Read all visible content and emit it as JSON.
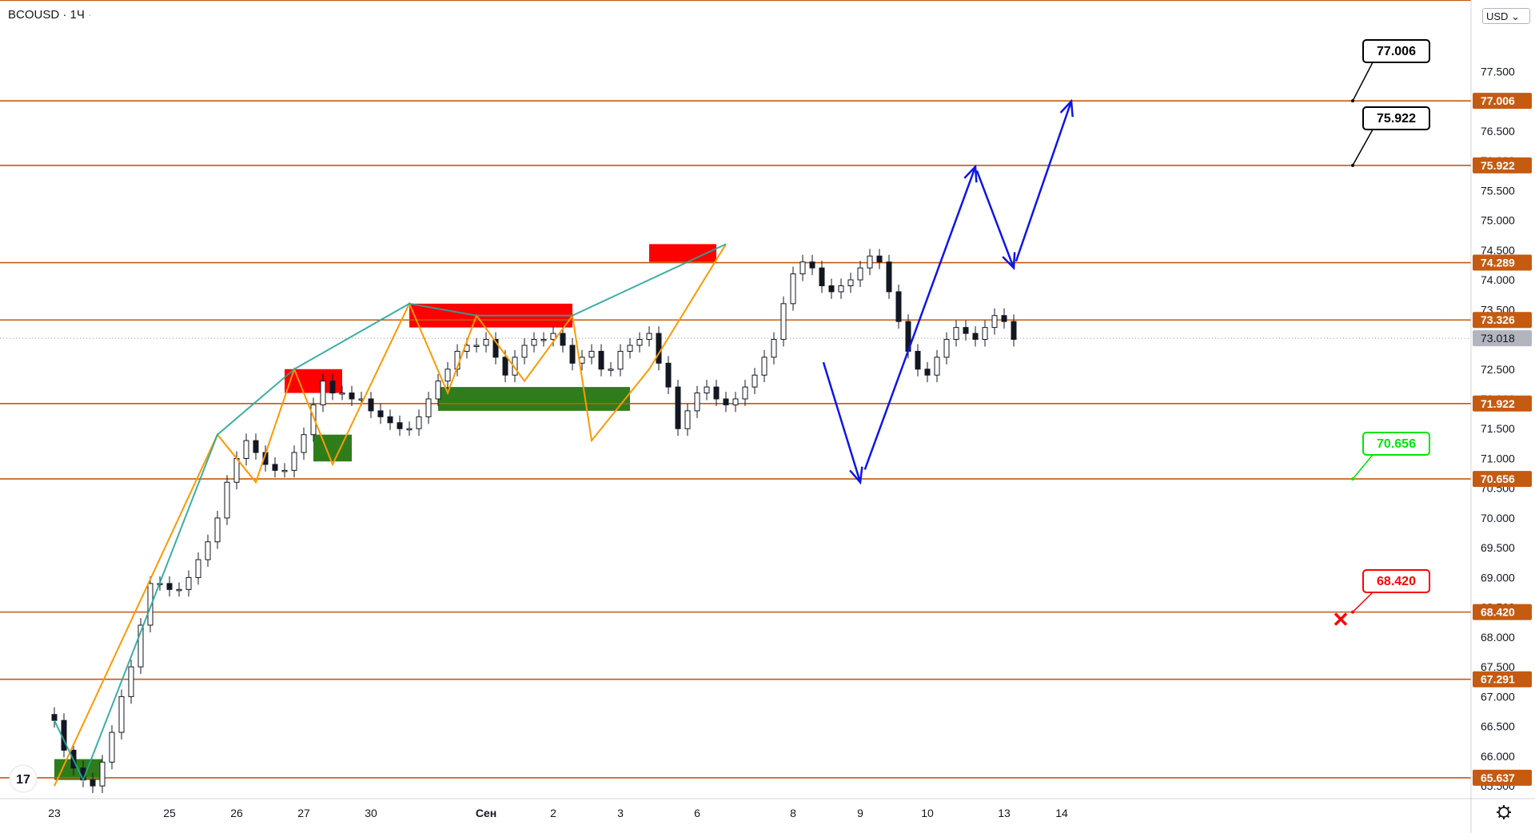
{
  "header": {
    "symbol": "BCOUSD",
    "separator": "·",
    "interval": "1Ч",
    "dot": "·"
  },
  "currency": {
    "label": "USD",
    "caret": "⌄"
  },
  "chart_data": {
    "type": "candlestick",
    "y_ticks": [
      77.5,
      77.0,
      76.5,
      76.0,
      75.5,
      75.0,
      74.5,
      74.0,
      73.5,
      72.5,
      72.0,
      71.5,
      71.0,
      70.5,
      70.0,
      69.5,
      69.0,
      68.5,
      68.0,
      67.5,
      67.0,
      66.5,
      66.0,
      65.5
    ],
    "y_tick_labels": [
      "77.500",
      "77.000",
      "76.500",
      "76.000",
      "75.500",
      "75.000",
      "74.500",
      "74.000",
      "73.500",
      "72.500",
      "72.000",
      "71.500",
      "71.000",
      "70.500",
      "70.000",
      "69.500",
      "69.000",
      "68.500",
      "68.000",
      "67.500",
      "67.000",
      "66.500",
      "66.000",
      "65.500"
    ],
    "ylim": [
      65.3,
      78.7
    ],
    "x_labels": [
      {
        "label": "23",
        "index": 0
      },
      {
        "label": "25",
        "index": 12
      },
      {
        "label": "26",
        "index": 19
      },
      {
        "label": "27",
        "index": 26
      },
      {
        "label": "30",
        "index": 33
      },
      {
        "label": "Сен",
        "index": 45
      },
      {
        "label": "2",
        "index": 52
      },
      {
        "label": "3",
        "index": 59
      },
      {
        "label": "6",
        "index": 67
      },
      {
        "label": "8",
        "index": 77
      },
      {
        "label": "9",
        "index": 84
      },
      {
        "label": "10",
        "index": 91
      },
      {
        "label": "13",
        "index": 99
      },
      {
        "label": "14",
        "index": 105
      }
    ],
    "levels": [
      {
        "value": 78.695,
        "label": "78.695",
        "labeled": false
      },
      {
        "value": 77.006,
        "label": "77.006",
        "labeled": true
      },
      {
        "value": 75.922,
        "label": "75.922",
        "labeled": true
      },
      {
        "value": 74.289,
        "label": "74.289",
        "labeled": true
      },
      {
        "value": 73.326,
        "label": "73.326",
        "labeled": true
      },
      {
        "value": 71.922,
        "label": "71.922",
        "labeled": true
      },
      {
        "value": 70.656,
        "label": "70.656",
        "labeled": true
      },
      {
        "value": 68.42,
        "label": "68.420",
        "labeled": true
      },
      {
        "value": 67.291,
        "label": "67.291",
        "labeled": true
      },
      {
        "value": 65.637,
        "label": "65.637",
        "labeled": true
      }
    ],
    "last_price": {
      "value": 73.018,
      "label": "73.018"
    },
    "closes": [
      66.6,
      66.1,
      65.8,
      65.6,
      65.5,
      65.9,
      66.4,
      67.0,
      67.5,
      68.2,
      68.9,
      68.9,
      68.8,
      68.8,
      69.0,
      69.3,
      69.6,
      70.0,
      70.6,
      71.0,
      71.3,
      71.1,
      70.9,
      70.8,
      70.8,
      71.1,
      71.4,
      71.9,
      72.3,
      72.1,
      72.1,
      72.0,
      72.0,
      71.8,
      71.7,
      71.6,
      71.5,
      71.5,
      71.7,
      72.0,
      72.3,
      72.5,
      72.8,
      72.9,
      72.9,
      73.0,
      72.7,
      72.4,
      72.7,
      72.9,
      73.0,
      73.0,
      73.1,
      72.9,
      72.6,
      72.7,
      72.8,
      72.5,
      72.5,
      72.8,
      72.9,
      73.0,
      73.1,
      72.6,
      72.2,
      71.5,
      71.8,
      72.1,
      72.2,
      72.0,
      71.9,
      72.0,
      72.2,
      72.4,
      72.7,
      73.0,
      73.6,
      74.1,
      74.3,
      74.2,
      73.9,
      73.8,
      73.9,
      74.0,
      74.2,
      74.4,
      74.3,
      73.8,
      73.3,
      72.8,
      72.5,
      72.4,
      72.7,
      73.0,
      73.2,
      73.1,
      73.0,
      73.2,
      73.4,
      73.3,
      73.0
    ],
    "zigzag_up": [
      [
        0,
        65.5
      ],
      [
        17,
        71.4
      ],
      [
        21,
        70.6
      ],
      [
        25,
        72.5
      ],
      [
        29,
        70.9
      ],
      [
        37,
        73.6
      ],
      [
        41,
        72.1
      ],
      [
        44,
        73.4
      ],
      [
        49,
        72.3
      ],
      [
        54,
        73.4
      ],
      [
        56,
        71.3
      ],
      [
        62,
        72.5
      ],
      [
        70,
        74.6
      ]
    ],
    "zigzag_down": [
      [
        0,
        66.6
      ],
      [
        3,
        65.6
      ],
      [
        17,
        71.4
      ],
      [
        21,
        70.6
      ],
      [
        25,
        72.5
      ],
      [
        29,
        70.9
      ],
      [
        37,
        73.6
      ],
      [
        41,
        72.1
      ],
      [
        44,
        73.4
      ],
      [
        49,
        72.3
      ],
      [
        54,
        73.4
      ],
      [
        56,
        71.3
      ],
      [
        70,
        74.6
      ],
      [
        74,
        72.3
      ]
    ],
    "supply_zones": [
      {
        "from": 24,
        "to": 30,
        "low": 72.1,
        "high": 72.5
      },
      {
        "from": 37,
        "to": 54,
        "low": 73.2,
        "high": 73.6
      },
      {
        "from": 62,
        "to": 69,
        "low": 74.3,
        "high": 74.6
      }
    ],
    "demand_zones": [
      {
        "from": 0,
        "to": 5,
        "low": 65.6,
        "high": 65.95
      },
      {
        "from": 27,
        "to": 31,
        "low": 70.95,
        "high": 71.4
      },
      {
        "from": 40,
        "to": 60,
        "low": 71.8,
        "high": 72.2
      }
    ],
    "forecast": [
      [
        80,
        72.7
      ],
      [
        84,
        70.6
      ],
      [
        96,
        75.9
      ],
      [
        100,
        74.2
      ],
      [
        106,
        77.0
      ]
    ],
    "callouts": [
      {
        "label": "77.006",
        "color": "#000000",
        "value": 77.006
      },
      {
        "label": "75.922",
        "color": "#000000",
        "value": 75.922
      },
      {
        "label": "70.656",
        "color": "#00e600",
        "value": 70.656
      },
      {
        "label": "68.420",
        "color": "#ff0000",
        "value": 68.42
      }
    ],
    "level_color": "#c55a11",
    "up_color": "#131722",
    "zigzag_up_color": "#ff9800",
    "zigzag_down_color": "#26a69a",
    "forecast_color": "#0d16e6",
    "supply_color": "#ff0000",
    "demand_color": "#2e7d1a"
  },
  "icons": {
    "logo": "tradingview-logo-icon",
    "settings": "gear-icon",
    "stop": "red-x-icon"
  }
}
